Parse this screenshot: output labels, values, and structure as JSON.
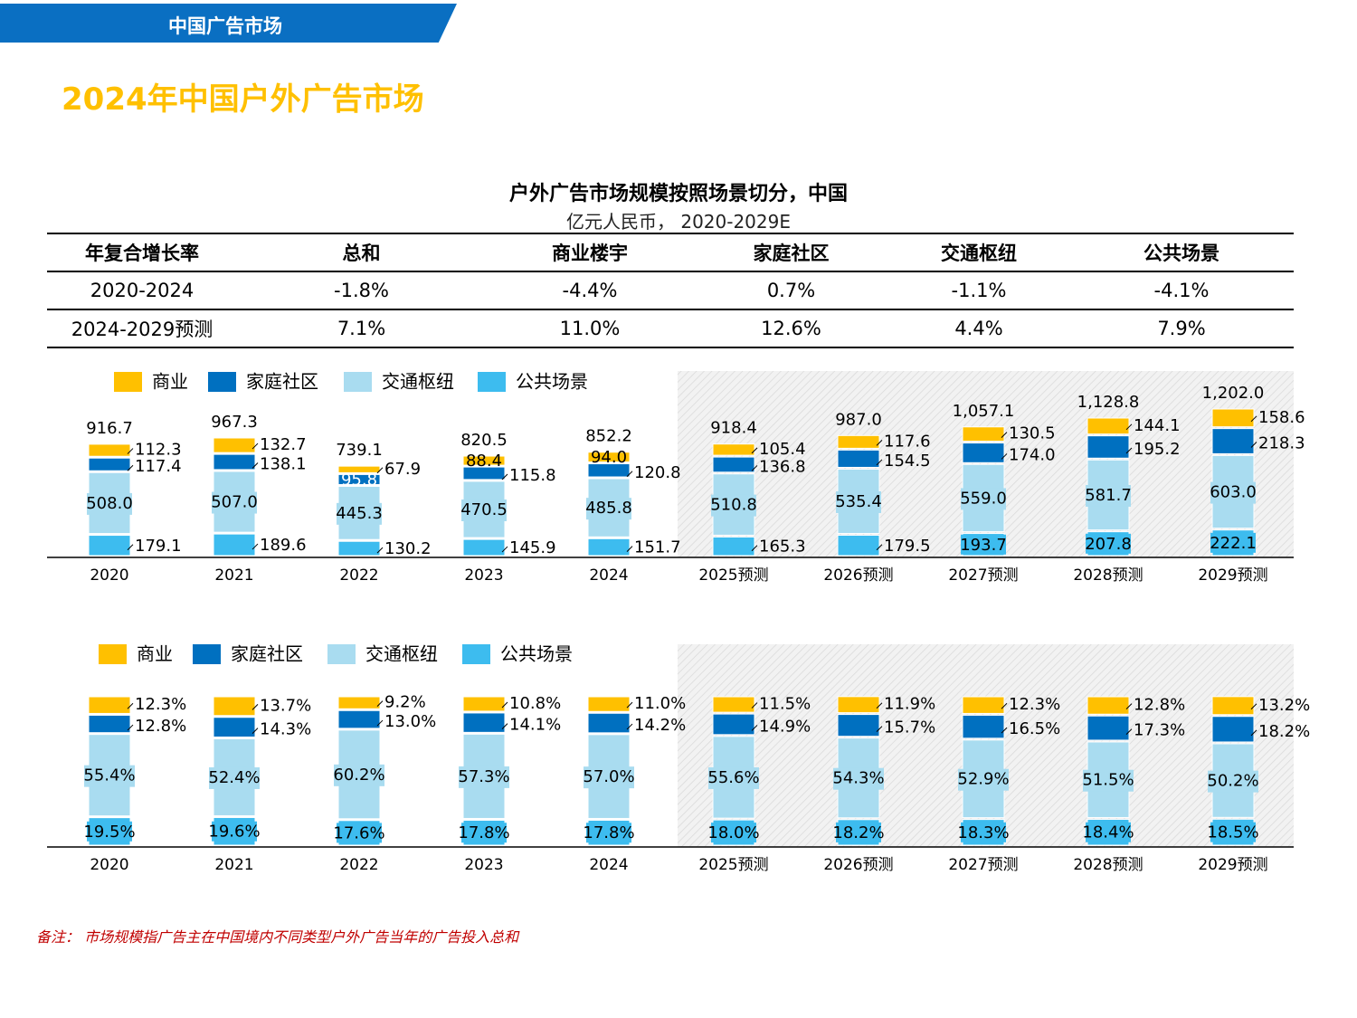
{
  "header": {
    "section_label": "中国广告市场"
  },
  "page_title": "2024年中国户外广告市场",
  "chart_title": "户外广告市场规模按照场景切分，中国",
  "chart_subtitle": "亿元人民币，  2020-2029E",
  "cagr_table": {
    "headers": [
      "年复合增长率",
      "总和",
      "商业楼宇",
      "家庭社区",
      "交通枢纽",
      "公共场景"
    ],
    "rows": [
      [
        "2020-2024",
        "-1.8%",
        "-4.4%",
        "0.7%",
        "-1.1%",
        "-4.1%"
      ],
      [
        "2024-2029预测",
        "7.1%",
        "11.0%",
        "12.6%",
        "4.4%",
        "7.9%"
      ]
    ]
  },
  "legend": [
    "商业",
    "家庭社区",
    "交通枢纽",
    "公共场景"
  ],
  "colors": {
    "commercial": "#ffc000",
    "residential": "#0070c0",
    "transport": "#a9dcf0",
    "public": "#3dbcef",
    "banner": "#0a6fc2",
    "title": "#ffc000",
    "note": "#c00000"
  },
  "chart_data": [
    {
      "type": "bar",
      "stacked": true,
      "categories": [
        "2020",
        "2021",
        "2022",
        "2023",
        "2024",
        "2025预测",
        "2026预测",
        "2027预测",
        "2028预测",
        "2029预测"
      ],
      "series": [
        {
          "name": "公共场景",
          "values": [
            179.1,
            189.6,
            130.2,
            145.9,
            151.7,
            165.3,
            179.5,
            193.7,
            207.8,
            222.1
          ]
        },
        {
          "name": "交通枢纽",
          "values": [
            508.0,
            507.0,
            445.3,
            470.5,
            485.8,
            510.8,
            535.4,
            559.0,
            581.7,
            603.0
          ]
        },
        {
          "name": "家庭社区",
          "values": [
            117.4,
            138.1,
            95.8,
            115.8,
            120.8,
            136.8,
            154.5,
            174.0,
            195.2,
            218.3
          ]
        },
        {
          "name": "商业",
          "values": [
            112.3,
            132.7,
            67.9,
            88.4,
            94.0,
            105.4,
            117.6,
            130.5,
            144.1,
            158.6
          ]
        }
      ],
      "totals": [
        "916.7",
        "967.3",
        "739.1",
        "820.5",
        "852.2",
        "918.4",
        "987.0",
        "1,057.1",
        "1,128.8",
        "1,202.0"
      ],
      "forecast_shading_from": "2025预测"
    },
    {
      "type": "bar",
      "stacked": true,
      "unit": "%",
      "categories": [
        "2020",
        "2021",
        "2022",
        "2023",
        "2024",
        "2025预测",
        "2026预测",
        "2027预测",
        "2028预测",
        "2029预测"
      ],
      "series": [
        {
          "name": "公共场景",
          "values": [
            19.5,
            19.6,
            17.6,
            17.8,
            17.8,
            18.0,
            18.2,
            18.3,
            18.4,
            18.5
          ]
        },
        {
          "name": "交通枢纽",
          "values": [
            55.4,
            52.4,
            60.2,
            57.3,
            57.0,
            55.6,
            54.3,
            52.9,
            51.5,
            50.2
          ]
        },
        {
          "name": "家庭社区",
          "values": [
            12.8,
            14.3,
            13.0,
            14.1,
            14.2,
            14.9,
            15.7,
            16.5,
            17.3,
            18.2
          ]
        },
        {
          "name": "商业",
          "values": [
            12.3,
            13.7,
            9.2,
            10.8,
            11.0,
            11.5,
            11.9,
            12.3,
            12.8,
            13.2
          ]
        }
      ],
      "forecast_shading_from": "2025预测"
    }
  ],
  "footnote": "备注：  市场规模指广告主在中国境内不同类型户外广告当年的广告投入总和"
}
